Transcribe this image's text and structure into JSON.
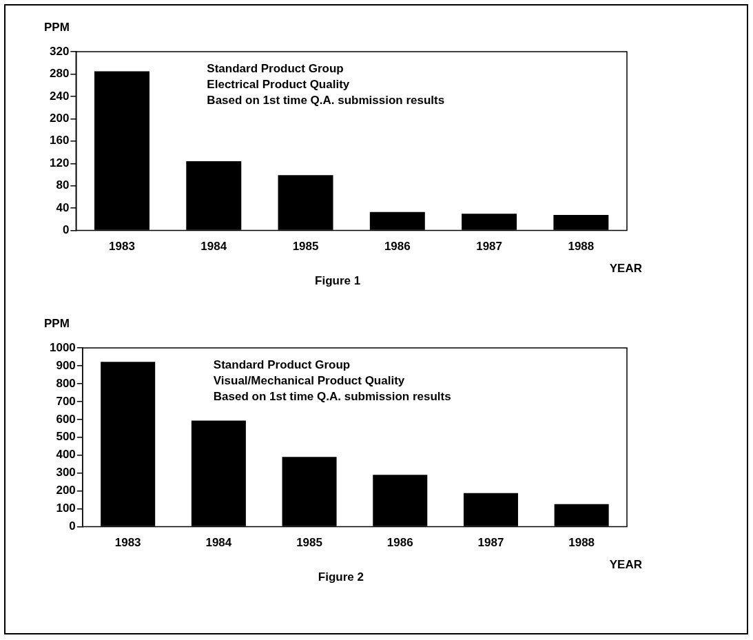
{
  "chart_data": [
    {
      "type": "bar",
      "title": "Figure 1",
      "xlabel": "YEAR",
      "ylabel": "PPM",
      "categories": [
        "1983",
        "1984",
        "1985",
        "1986",
        "1987",
        "1988"
      ],
      "values": [
        285,
        124,
        99,
        33,
        30,
        28
      ],
      "color": "#000000",
      "ylim": [
        0,
        320
      ],
      "yticks": [
        0,
        40,
        80,
        120,
        160,
        200,
        240,
        280,
        320
      ],
      "grid": false,
      "annotations": [
        "Standard Product Group",
        "Electrical Product Quality",
        "Based on 1st time Q.A. submission results"
      ]
    },
    {
      "type": "bar",
      "title": "Figure 2",
      "xlabel": "YEAR",
      "ylabel": "PPM",
      "categories": [
        "1983",
        "1984",
        "1985",
        "1986",
        "1987",
        "1988"
      ],
      "values": [
        922,
        594,
        390,
        290,
        188,
        127
      ],
      "color": "#000000",
      "ylim": [
        0,
        1000
      ],
      "yticks": [
        0,
        100,
        200,
        300,
        400,
        500,
        600,
        700,
        800,
        900,
        1000
      ],
      "grid": false,
      "annotations": [
        "Standard Product Group",
        "Visual/Mechanical Product Quality",
        "Based on 1st time Q.A. submission results"
      ]
    }
  ]
}
